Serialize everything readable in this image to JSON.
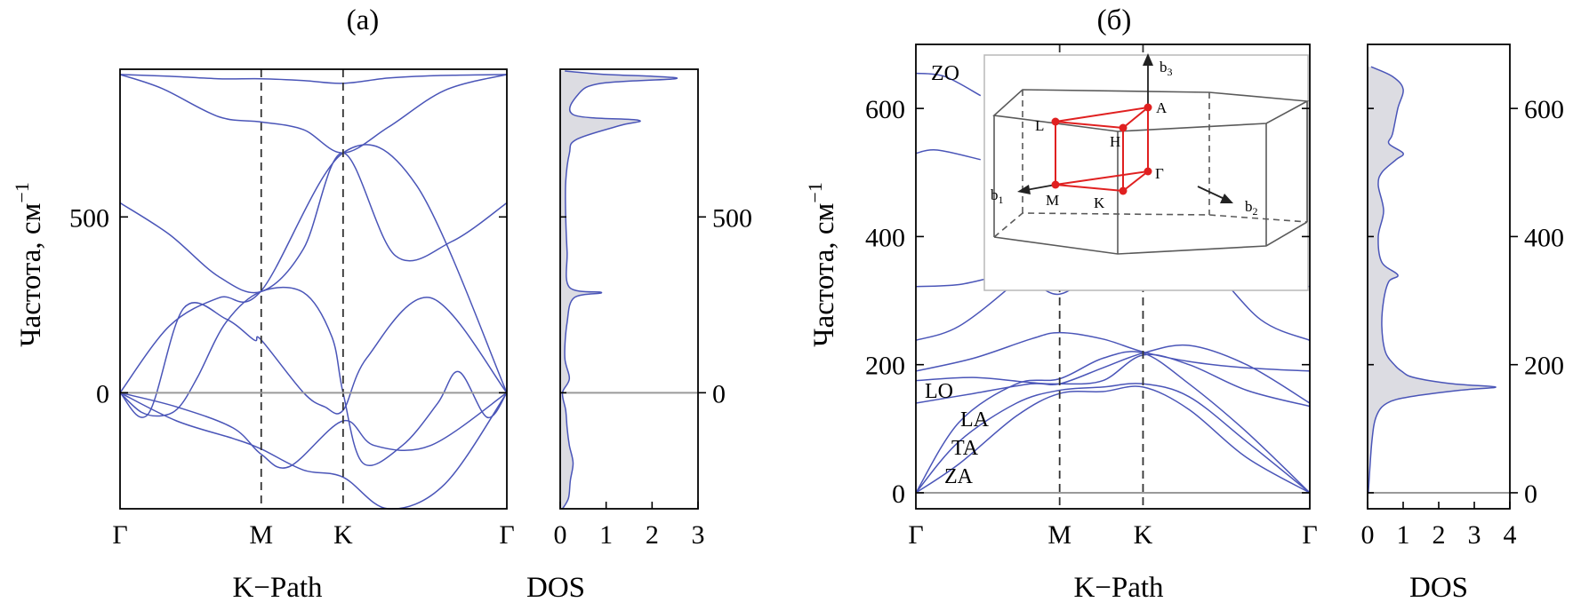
{
  "chart_data": [
    {
      "id": "a",
      "type": "line",
      "panel_label": "(a)",
      "xlabel": "K−Path",
      "ylabel": "Частота, см",
      "ylabel_sup": "−1",
      "x_ticks": [
        "Γ",
        "M",
        "K",
        "Γ"
      ],
      "x_tick_positions": [
        0,
        1,
        1.58,
        2.74
      ],
      "xlim": [
        0,
        2.74
      ],
      "ylim": [
        -330,
        920
      ],
      "y_ticks": [
        0,
        500
      ],
      "grid": false,
      "series": [
        {
          "name": "band-1",
          "x": [
            0,
            0.35,
            0.7,
            1.0,
            1.3,
            1.58,
            1.9,
            2.25,
            2.74
          ],
          "y": [
            905,
            900,
            893,
            893,
            888,
            880,
            895,
            902,
            905
          ]
        },
        {
          "name": "band-2",
          "x": [
            0,
            0.3,
            0.7,
            1.0,
            1.3,
            1.58,
            1.9,
            2.3,
            2.74
          ],
          "y": [
            905,
            865,
            785,
            770,
            748,
            682,
            755,
            860,
            905
          ]
        },
        {
          "name": "band-3",
          "x": [
            0,
            0.35,
            0.7,
            1.0,
            1.58,
            2.1,
            2.74
          ],
          "y": [
            0,
            190,
            270,
            290,
            682,
            590,
            0
          ]
        },
        {
          "name": "band-4",
          "x": [
            0,
            0.35,
            0.7,
            1.0,
            1.3,
            1.58,
            1.95,
            2.35,
            2.74
          ],
          "y": [
            540,
            450,
            330,
            288,
            410,
            682,
            390,
            430,
            540
          ]
        },
        {
          "name": "band-5",
          "x": [
            0,
            0.2,
            0.45,
            0.75,
            0.95,
            1.0,
            1.3,
            1.45,
            1.58,
            1.75,
            2.2,
            2.74
          ],
          "y": [
            0,
            -60,
            240,
            210,
            150,
            150,
            0,
            -40,
            -50,
            100,
            270,
            0
          ]
        },
        {
          "name": "band-6",
          "x": [
            0,
            0.15,
            0.3,
            0.42,
            0.55,
            0.75,
            1.0,
            1.3,
            1.5,
            1.58,
            1.72,
            2.0,
            2.25,
            2.4,
            2.6,
            2.74
          ],
          "y": [
            0,
            -55,
            -65,
            -40,
            45,
            200,
            288,
            285,
            160,
            0,
            -200,
            -150,
            -30,
            60,
            -70,
            0
          ]
        },
        {
          "name": "band-7",
          "x": [
            0,
            0.4,
            0.8,
            1.0,
            1.3,
            1.58,
            1.9,
            2.3,
            2.74
          ],
          "y": [
            0,
            -80,
            -130,
            -160,
            -220,
            -240,
            -330,
            -260,
            0
          ]
        },
        {
          "name": "band-8",
          "x": [
            0,
            0.4,
            0.8,
            1.0,
            1.2,
            1.58,
            1.8,
            2.2,
            2.74
          ],
          "y": [
            0,
            -40,
            -100,
            -175,
            -210,
            -80,
            -150,
            -150,
            0
          ]
        }
      ]
    },
    {
      "id": "a-dos",
      "type": "area",
      "xlabel": "DOS",
      "xlim": [
        0,
        3
      ],
      "x_ticks": [
        0,
        1,
        2,
        3
      ],
      "ylim": [
        -330,
        920
      ],
      "y_ticks": [
        0,
        500
      ],
      "profile": {
        "y": [
          -330,
          -300,
          -250,
          -200,
          -150,
          -100,
          -50,
          0,
          40,
          100,
          200,
          270,
          285,
          300,
          400,
          500,
          600,
          680,
          720,
          760,
          775,
          790,
          850,
          880,
          893,
          900,
          905,
          915
        ],
        "v": [
          0.05,
          0.18,
          0.22,
          0.28,
          0.2,
          0.15,
          0.12,
          0.05,
          0.2,
          0.1,
          0.15,
          0.3,
          0.9,
          0.2,
          0.15,
          0.12,
          0.12,
          0.2,
          0.35,
          1.3,
          1.7,
          0.3,
          0.4,
          0.9,
          2.5,
          2.0,
          1.0,
          0.1
        ]
      }
    },
    {
      "id": "b",
      "type": "line",
      "panel_label": "(б)",
      "xlabel": "K−Path",
      "ylabel": "Частота, см",
      "ylabel_sup": "−1",
      "x_ticks": [
        "Γ",
        "M",
        "K",
        "Γ"
      ],
      "x_tick_positions": [
        0,
        1,
        1.58,
        2.74
      ],
      "xlim": [
        0,
        2.74
      ],
      "ylim": [
        -25,
        700
      ],
      "y_ticks": [
        0,
        200,
        400,
        600
      ],
      "grid": false,
      "mode_labels": [
        "ZO",
        "LO",
        "LA",
        "TA",
        "ZA"
      ],
      "series": [
        {
          "name": "ZO",
          "x": [
            0,
            0.2,
            0.45
          ],
          "y": [
            655,
            650,
            620
          ]
        },
        {
          "name": "opt-530",
          "x": [
            0,
            0.15,
            0.45
          ],
          "y": [
            530,
            535,
            520
          ]
        },
        {
          "name": "opt-320",
          "x": [
            0,
            0.3,
            0.7,
            1.0,
            1.3,
            1.58,
            1.9,
            2.2,
            2.5,
            2.74
          ],
          "y": [
            322,
            325,
            340,
            310,
            360,
            395,
            380,
            320,
            326,
            322
          ]
        },
        {
          "name": "opt-240",
          "x": [
            0,
            0.3,
            0.7,
            1.0,
            1.58,
            2.0,
            2.4,
            2.74
          ],
          "y": [
            238,
            260,
            330,
            395,
            395,
            360,
            270,
            238
          ]
        },
        {
          "name": "LO-high",
          "x": [
            0,
            0.4,
            0.8,
            1.0,
            1.3,
            1.58,
            1.9,
            2.3,
            2.74
          ],
          "y": [
            190,
            210,
            240,
            250,
            240,
            220,
            205,
            195,
            190
          ]
        },
        {
          "name": "LO",
          "x": [
            0,
            0.4,
            0.8,
            1.0,
            1.3,
            1.58,
            1.9,
            2.3,
            2.74
          ],
          "y": [
            140,
            155,
            170,
            170,
            195,
            218,
            230,
            200,
            140
          ]
        },
        {
          "name": "TO",
          "x": [
            0,
            0.4,
            0.8,
            1.0,
            1.3,
            1.58,
            1.9,
            2.3,
            2.74
          ],
          "y": [
            175,
            180,
            172,
            170,
            175,
            215,
            200,
            160,
            135
          ]
        },
        {
          "name": "LA",
          "x": [
            0,
            0.3,
            0.7,
            1.0,
            1.3,
            1.58,
            1.9,
            2.3,
            2.74
          ],
          "y": [
            0,
            110,
            170,
            178,
            210,
            218,
            170,
            95,
            0
          ]
        },
        {
          "name": "TA",
          "x": [
            0,
            0.3,
            0.7,
            1.0,
            1.3,
            1.58,
            1.9,
            2.3,
            2.74
          ],
          "y": [
            0,
            80,
            140,
            160,
            165,
            170,
            150,
            80,
            0
          ]
        },
        {
          "name": "ZA",
          "x": [
            0,
            0.3,
            0.7,
            1.0,
            1.3,
            1.58,
            1.9,
            2.3,
            2.74
          ],
          "y": [
            0,
            45,
            120,
            155,
            158,
            165,
            130,
            55,
            0
          ]
        }
      ],
      "inset": {
        "points": [
          "L",
          "A",
          "H",
          "M",
          "K",
          "Γ"
        ],
        "vectors": [
          "b",
          "b",
          "b"
        ],
        "vector_subs": [
          "1",
          "2",
          "3"
        ]
      }
    },
    {
      "id": "b-dos",
      "type": "area",
      "xlabel": "DOS",
      "xlim": [
        0,
        4
      ],
      "x_ticks": [
        0,
        1,
        2,
        3,
        4
      ],
      "ylim": [
        -25,
        700
      ],
      "y_ticks": [
        0,
        200,
        400,
        600
      ],
      "profile": {
        "y": [
          0,
          80,
          120,
          140,
          150,
          160,
          165,
          170,
          180,
          190,
          200,
          220,
          260,
          300,
          330,
          340,
          360,
          400,
          440,
          480,
          500,
          520,
          530,
          545,
          560,
          600,
          630,
          650,
          665
        ],
        "v": [
          0.02,
          0.12,
          0.25,
          0.55,
          1.2,
          2.6,
          3.6,
          2.4,
          1.3,
          0.95,
          0.75,
          0.5,
          0.4,
          0.45,
          0.6,
          0.85,
          0.4,
          0.3,
          0.45,
          0.3,
          0.4,
          0.8,
          1.0,
          0.6,
          0.7,
          0.85,
          1.0,
          0.7,
          0.1
        ]
      }
    }
  ]
}
